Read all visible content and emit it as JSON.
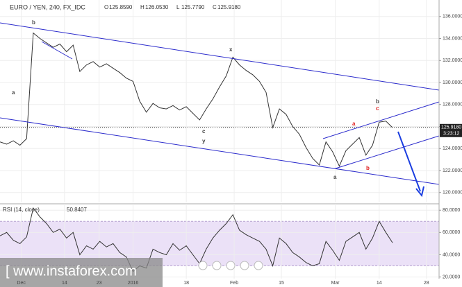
{
  "chart_data": [
    {
      "type": "line",
      "title": "EURO / YEN, 240, FX_IDC",
      "ohlc": [
        {
          "label": "O",
          "value": "125.8590"
        },
        {
          "label": "H",
          "value": "126.0530"
        },
        {
          "label": "L",
          "value": "125.7790"
        },
        {
          "label": "C",
          "value": "125.9180"
        }
      ],
      "x": [
        0,
        1,
        2,
        3,
        4,
        5,
        6,
        7,
        8,
        9,
        10,
        11,
        12,
        13,
        14,
        15,
        16,
        17,
        18,
        19,
        20,
        21,
        22,
        23,
        24,
        25,
        26,
        27,
        28,
        29,
        30,
        31,
        32,
        33,
        34,
        35,
        36,
        37,
        38,
        39,
        40,
        41,
        42,
        43,
        44,
        45,
        46,
        47,
        48,
        49,
        50,
        51,
        52,
        53,
        54,
        55,
        56,
        57,
        58,
        59
      ],
      "values": [
        124.6,
        124.4,
        124.7,
        124.3,
        124.9,
        134.5,
        134.0,
        133.6,
        133.2,
        133.5,
        132.8,
        133.4,
        131.0,
        131.6,
        131.9,
        131.4,
        131.7,
        131.3,
        130.9,
        130.4,
        130.1,
        128.3,
        127.3,
        128.1,
        127.7,
        127.6,
        127.9,
        127.5,
        127.8,
        127.2,
        126.6,
        127.6,
        128.5,
        129.6,
        130.6,
        132.3,
        131.6,
        131.1,
        130.7,
        130.1,
        129.1,
        125.9,
        127.6,
        127.1,
        126.0,
        125.3,
        124.1,
        123.1,
        122.5,
        124.6,
        123.7,
        122.4,
        123.8,
        124.4,
        125.0,
        123.4,
        124.3,
        126.4,
        126.5,
        125.9
      ],
      "color": "#333333",
      "last_price": {
        "value": 125.918,
        "label": "125.9180"
      },
      "countdown": "3:23:12",
      "annotations": [
        "b",
        "a",
        "x",
        "c",
        "y",
        "a",
        "b",
        "c",
        "b",
        "a"
      ],
      "xlim": [
        0,
        66
      ],
      "ylim": [
        119.1,
        137.5
      ],
      "yticks": [
        {
          "value": 120,
          "label": "120.0000"
        },
        {
          "value": 122,
          "label": "122.0000"
        },
        {
          "value": 124,
          "label": "124.0000"
        },
        {
          "value": 126,
          "label": "126.0000"
        },
        {
          "value": 128,
          "label": "128.0000"
        },
        {
          "value": 130,
          "label": "130.0000"
        },
        {
          "value": 132,
          "label": "132.0000"
        },
        {
          "value": 134,
          "label": "134.0000"
        },
        {
          "value": 136,
          "label": "136.0000"
        }
      ],
      "grid": true
    },
    {
      "type": "line",
      "title": "RSI (14, close)",
      "last_value_label": "50.8407",
      "x": [
        0,
        1,
        2,
        3,
        4,
        5,
        6,
        7,
        8,
        9,
        10,
        11,
        12,
        13,
        14,
        15,
        16,
        17,
        18,
        19,
        20,
        21,
        22,
        23,
        24,
        25,
        26,
        27,
        28,
        29,
        30,
        31,
        32,
        33,
        34,
        35,
        36,
        37,
        38,
        39,
        40,
        41,
        42,
        43,
        44,
        45,
        46,
        47,
        48,
        49,
        50,
        51,
        52,
        53,
        54,
        55,
        56,
        57,
        58,
        59
      ],
      "values": [
        57,
        60,
        53,
        50,
        56,
        82,
        74,
        68,
        60,
        63,
        55,
        60,
        40,
        48,
        45,
        52,
        47,
        50,
        42,
        38,
        25,
        30,
        28,
        45,
        42,
        40,
        50,
        44,
        48,
        40,
        32,
        45,
        55,
        62,
        68,
        76,
        62,
        58,
        55,
        52,
        45,
        30,
        55,
        50,
        42,
        38,
        33,
        30,
        32,
        52,
        44,
        35,
        52,
        56,
        60,
        45,
        55,
        70,
        60,
        50.8407
      ],
      "color": "#333333",
      "band": [
        30,
        70
      ],
      "band_color": "#e6d9f5",
      "xlim": [
        0,
        66
      ],
      "ylim": [
        18.5,
        84.5
      ],
      "yticks": [
        {
          "value": 20,
          "label": "20.0000"
        },
        {
          "value": 40,
          "label": "40.0000"
        },
        {
          "value": 60,
          "label": "60.0000"
        },
        {
          "value": 80,
          "label": "80.0000"
        }
      ],
      "xticks": [
        {
          "value": 3.2,
          "label": "Dec"
        },
        {
          "value": 9.7,
          "label": "14"
        },
        {
          "value": 14.9,
          "label": "23"
        },
        {
          "value": 20,
          "label": "2016"
        },
        {
          "value": 28,
          "label": "18"
        },
        {
          "value": 35.2,
          "label": "Feb"
        },
        {
          "value": 42.3,
          "label": "15"
        },
        {
          "value": 50.4,
          "label": "Mar"
        },
        {
          "value": 57,
          "label": "14"
        },
        {
          "value": 64.1,
          "label": "28"
        }
      ],
      "grid": true
    }
  ],
  "watermark": "[  www.instaforex.com"
}
